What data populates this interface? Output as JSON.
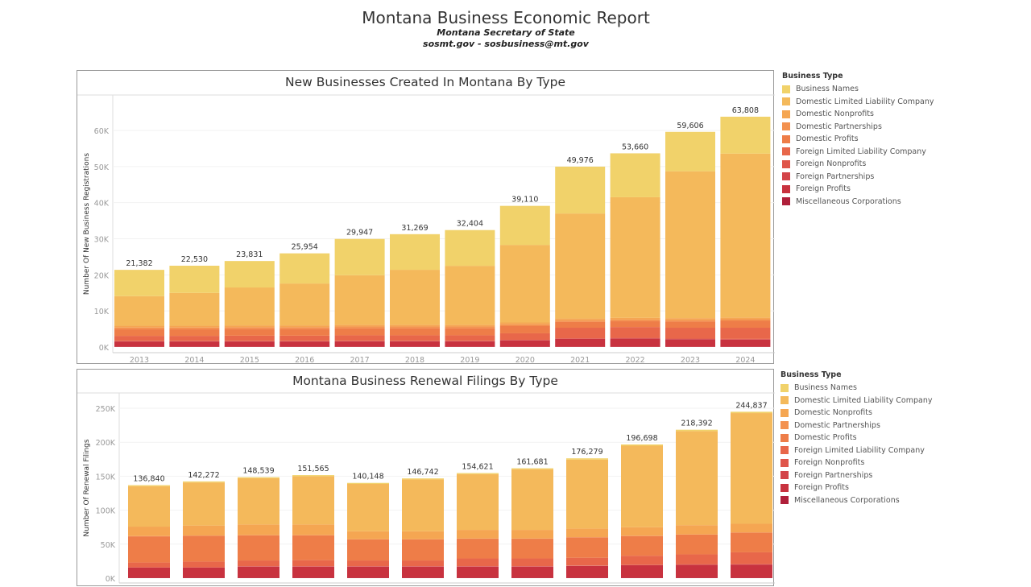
{
  "header": {
    "title": "Montana Business Economic Report",
    "subtitle": "Montana Secretary of State",
    "contact": "sosmt.gov - sosbusiness@mt.gov"
  },
  "legend": {
    "title": "Business Type",
    "items": [
      {
        "label": "Business Names",
        "color": "#f1d26a"
      },
      {
        "label": "Domestic Limited Liability Company",
        "color": "#f4b95b"
      },
      {
        "label": "Domestic Nonprofits",
        "color": "#f5a652"
      },
      {
        "label": "Domestic Partnerships",
        "color": "#f3914f"
      },
      {
        "label": "Domestic Profits",
        "color": "#ee7d48"
      },
      {
        "label": "Foreign Limited Liability Company",
        "color": "#e8674a"
      },
      {
        "label": "Foreign Nonprofits",
        "color": "#df554a"
      },
      {
        "label": "Foreign Partnerships",
        "color": "#d34449"
      },
      {
        "label": "Foreign Profits",
        "color": "#c8323f"
      },
      {
        "label": "Miscellaneous Corporations",
        "color": "#af1f3a"
      }
    ]
  },
  "chart_data": [
    {
      "type": "bar",
      "stacked": true,
      "title": "New Businesses Created In Montana By Type",
      "xlabel": "",
      "ylabel": "Number Of New Business Registrations",
      "ylim": [
        0,
        70000
      ],
      "yticks": [
        0,
        10000,
        20000,
        30000,
        40000,
        50000,
        60000
      ],
      "ytick_labels": [
        "0K",
        "10K",
        "20K",
        "30K",
        "40K",
        "50K",
        "60K"
      ],
      "categories": [
        "2013",
        "2014",
        "2015",
        "2016",
        "2017",
        "2018",
        "2019",
        "2020",
        "2021",
        "2022",
        "2023",
        "2024"
      ],
      "totals": [
        21382,
        22530,
        23831,
        25954,
        29947,
        31269,
        32404,
        39110,
        49976,
        53660,
        59606,
        63808
      ],
      "total_labels": [
        "21,382",
        "22,530",
        "23,831",
        "25,954",
        "29,947",
        "31,269",
        "32,404",
        "39,110",
        "49,976",
        "53,660",
        "59,606",
        "63,808"
      ],
      "series": [
        {
          "name": "Miscellaneous Corporations",
          "values": [
            50,
            50,
            50,
            50,
            50,
            50,
            50,
            50,
            50,
            50,
            50,
            50
          ]
        },
        {
          "name": "Foreign Profits",
          "values": [
            1500,
            1500,
            1500,
            1500,
            1550,
            1550,
            1550,
            1800,
            2200,
            2300,
            2100,
            2000
          ]
        },
        {
          "name": "Foreign Partnerships",
          "values": [
            50,
            50,
            50,
            50,
            50,
            50,
            50,
            50,
            50,
            50,
            50,
            50
          ]
        },
        {
          "name": "Foreign Nonprofits",
          "values": [
            100,
            100,
            100,
            100,
            100,
            100,
            100,
            100,
            150,
            150,
            150,
            150
          ]
        },
        {
          "name": "Foreign Limited Liability Company",
          "values": [
            1400,
            1400,
            1450,
            1450,
            1500,
            1500,
            1500,
            1800,
            2900,
            3000,
            3000,
            3100
          ]
        },
        {
          "name": "Domestic Profits",
          "values": [
            1800,
            1800,
            1850,
            1850,
            1900,
            1900,
            1900,
            2000,
            1600,
            1600,
            1700,
            1900
          ]
        },
        {
          "name": "Domestic Partnerships",
          "values": [
            500,
            500,
            500,
            500,
            550,
            550,
            550,
            500,
            450,
            450,
            450,
            450
          ]
        },
        {
          "name": "Domestic Nonprofits",
          "values": [
            500,
            500,
            500,
            500,
            500,
            500,
            500,
            500,
            500,
            500,
            500,
            500
          ]
        },
        {
          "name": "Domestic Limited Liability Company",
          "values": [
            8200,
            9100,
            10500,
            11600,
            13700,
            15200,
            16300,
            21500,
            29100,
            33400,
            40700,
            45400
          ]
        },
        {
          "name": "Business Names",
          "values": [
            7282,
            7530,
            7331,
            8354,
            10047,
            9869,
            9904,
            10810,
            12976,
            12160,
            10906,
            10208
          ]
        }
      ]
    },
    {
      "type": "bar",
      "stacked": true,
      "title": "Montana Business Renewal Filings By Type",
      "xlabel": "",
      "ylabel": "Number Of Renewal Filings",
      "ylim": [
        0,
        260000
      ],
      "yticks": [
        0,
        50000,
        100000,
        150000,
        200000,
        250000
      ],
      "ytick_labels": [
        "0K",
        "50K",
        "100K",
        "150K",
        "200K",
        "250K"
      ],
      "categories": [
        "2013",
        "2014",
        "2015",
        "2016",
        "2017",
        "2018",
        "2019",
        "2020",
        "2021",
        "2022",
        "2023",
        "2024"
      ],
      "totals": [
        136840,
        142272,
        148539,
        151565,
        140148,
        146742,
        154621,
        161681,
        176279,
        196698,
        218392,
        244837
      ],
      "total_labels": [
        "136,840",
        "142,272",
        "148,539",
        "151,565",
        "140,148",
        "146,742",
        "154,621",
        "161,681",
        "176,279",
        "196,698",
        "218,392",
        "244,837"
      ],
      "series": [
        {
          "name": "Miscellaneous Corporations",
          "values": [
            500,
            500,
            500,
            500,
            500,
            500,
            500,
            500,
            500,
            500,
            500,
            500
          ]
        },
        {
          "name": "Foreign Profits",
          "values": [
            14900,
            14900,
            16500,
            16500,
            16500,
            16500,
            16500,
            16500,
            17500,
            18500,
            19100,
            19500
          ]
        },
        {
          "name": "Foreign Partnerships",
          "values": [
            200,
            200,
            200,
            200,
            200,
            200,
            200,
            200,
            200,
            200,
            200,
            200
          ]
        },
        {
          "name": "Foreign Nonprofits",
          "values": [
            400,
            400,
            400,
            400,
            400,
            400,
            400,
            400,
            400,
            400,
            400,
            400
          ]
        },
        {
          "name": "Foreign Limited Liability Company",
          "values": [
            7000,
            8400,
            8400,
            8900,
            8400,
            8400,
            11400,
            11400,
            11400,
            13400,
            14800,
            17400
          ]
        },
        {
          "name": "Domestic Profits",
          "values": [
            38500,
            38000,
            37000,
            36500,
            31000,
            31000,
            29000,
            29000,
            30000,
            29000,
            29000,
            29000
          ]
        },
        {
          "name": "Domestic Partnerships",
          "values": [
            300,
            300,
            300,
            300,
            300,
            300,
            300,
            300,
            300,
            300,
            300,
            300
          ]
        },
        {
          "name": "Domestic Nonprofits",
          "values": [
            14000,
            14700,
            15700,
            15700,
            11700,
            11700,
            12700,
            12700,
            12700,
            12700,
            13700,
            12700
          ]
        },
        {
          "name": "Domestic Limited Liability Company",
          "values": [
            59540,
            63372,
            68039,
            71065,
            69648,
            76242,
            82121,
            89181,
            101479,
            119898,
            138392,
            162837
          ]
        },
        {
          "name": "Business Names",
          "values": [
            1500,
            1500,
            1500,
            1500,
            1500,
            1500,
            1500,
            1500,
            1800,
            1800,
            2000,
            2000
          ]
        }
      ]
    }
  ]
}
